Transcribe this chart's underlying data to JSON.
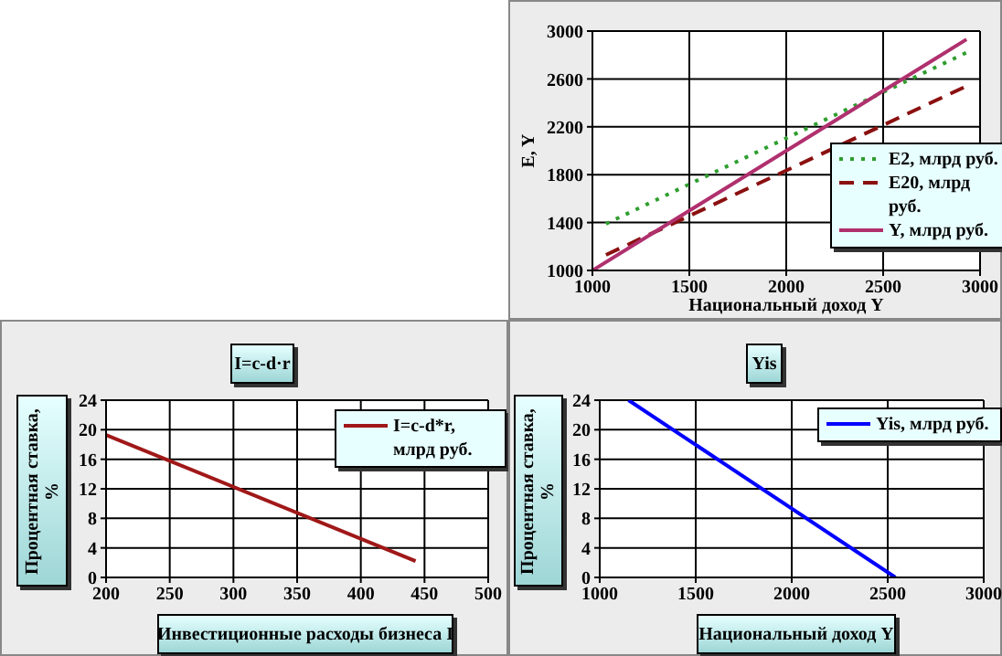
{
  "chart_data": [
    {
      "type": "line",
      "xlabel": "Национальный доход Y",
      "ylabel": "E, Y",
      "xlim": [
        1000,
        3000
      ],
      "xticks": [
        1000,
        1500,
        2000,
        2500,
        3000
      ],
      "ylim": [
        1000,
        3000
      ],
      "yticks": [
        1000,
        1400,
        1800,
        2200,
        2600,
        3000
      ],
      "grid": true,
      "legend": "bottom right",
      "series": [
        {
          "name": "E2, млрд руб.",
          "color": "#2e9e2e",
          "line_style": "dotted",
          "x": [
            1070,
            2930
          ],
          "values": [
            1390,
            2820
          ]
        },
        {
          "name": "E20, млрд руб.",
          "color": "#8b1010",
          "line_style": "dashed",
          "x": [
            1070,
            2930
          ],
          "values": [
            1130,
            2540
          ]
        },
        {
          "name": "Y, млрд руб.",
          "color": "#b0306e",
          "line_style": "solid",
          "x": [
            1000,
            2930
          ],
          "values": [
            1000,
            2930
          ]
        }
      ]
    },
    {
      "type": "line",
      "title": "I=c-d·r",
      "xlabel": "Инвестиционные расходы бизнеса I",
      "ylabel": "Процентная ставка, %",
      "xlim": [
        200,
        500
      ],
      "xticks": [
        200,
        250,
        300,
        350,
        400,
        450,
        500
      ],
      "ylim": [
        0,
        24
      ],
      "yticks": [
        0,
        4,
        8,
        12,
        16,
        20,
        24
      ],
      "grid": true,
      "legend": "top right",
      "series": [
        {
          "name": "I=c-d*r, млрд руб.",
          "color": "#a01818",
          "line_style": "solid",
          "x": [
            200,
            443
          ],
          "values": [
            19.3,
            2.2
          ]
        }
      ]
    },
    {
      "type": "line",
      "title": "Yis",
      "xlabel": "Национальный доход Y",
      "ylabel": "Процентная ставка, %",
      "xlim": [
        1000,
        3000
      ],
      "xticks": [
        1000,
        1500,
        2000,
        2500,
        3000
      ],
      "ylim": [
        0,
        24
      ],
      "yticks": [
        0,
        4,
        8,
        12,
        16,
        20,
        24
      ],
      "grid": true,
      "legend": "top right",
      "series": [
        {
          "name": "Yis, млрд руб.",
          "color": "#0000ff",
          "line_style": "solid",
          "x": [
            1150,
            2540
          ],
          "values": [
            24,
            0
          ]
        }
      ]
    }
  ]
}
